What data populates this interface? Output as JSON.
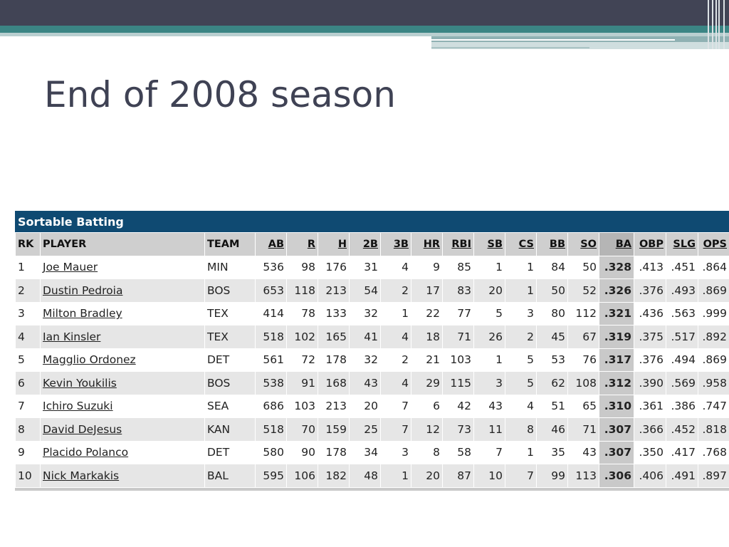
{
  "slide": {
    "title": "End of 2008 season"
  },
  "panel": {
    "title": "Sortable Batting"
  },
  "columns": [
    "RK",
    "PLAYER",
    "TEAM",
    "AB",
    "R",
    "H",
    "2B",
    "3B",
    "HR",
    "RBI",
    "SB",
    "CS",
    "BB",
    "SO",
    "BA",
    "OBP",
    "SLG",
    "OPS"
  ],
  "rows": [
    [
      "1",
      "Joe Mauer",
      "MIN",
      "536",
      "98",
      "176",
      "31",
      "4",
      "9",
      "85",
      "1",
      "1",
      "84",
      "50",
      ".328",
      ".413",
      ".451",
      ".864"
    ],
    [
      "2",
      "Dustin Pedroia",
      "BOS",
      "653",
      "118",
      "213",
      "54",
      "2",
      "17",
      "83",
      "20",
      "1",
      "50",
      "52",
      ".326",
      ".376",
      ".493",
      ".869"
    ],
    [
      "3",
      "Milton Bradley",
      "TEX",
      "414",
      "78",
      "133",
      "32",
      "1",
      "22",
      "77",
      "5",
      "3",
      "80",
      "112",
      ".321",
      ".436",
      ".563",
      ".999"
    ],
    [
      "4",
      "Ian Kinsler",
      "TEX",
      "518",
      "102",
      "165",
      "41",
      "4",
      "18",
      "71",
      "26",
      "2",
      "45",
      "67",
      ".319",
      ".375",
      ".517",
      ".892"
    ],
    [
      "5",
      "Magglio Ordonez",
      "DET",
      "561",
      "72",
      "178",
      "32",
      "2",
      "21",
      "103",
      "1",
      "5",
      "53",
      "76",
      ".317",
      ".376",
      ".494",
      ".869"
    ],
    [
      "6",
      "Kevin Youkilis",
      "BOS",
      "538",
      "91",
      "168",
      "43",
      "4",
      "29",
      "115",
      "3",
      "5",
      "62",
      "108",
      ".312",
      ".390",
      ".569",
      ".958"
    ],
    [
      "7",
      "Ichiro Suzuki",
      "SEA",
      "686",
      "103",
      "213",
      "20",
      "7",
      "6",
      "42",
      "43",
      "4",
      "51",
      "65",
      ".310",
      ".361",
      ".386",
      ".747"
    ],
    [
      "8",
      "David DeJesus",
      "KAN",
      "518",
      "70",
      "159",
      "25",
      "7",
      "12",
      "73",
      "11",
      "8",
      "46",
      "71",
      ".307",
      ".366",
      ".452",
      ".818"
    ],
    [
      "9",
      "Placido Polanco",
      "DET",
      "580",
      "90",
      "178",
      "34",
      "3",
      "8",
      "58",
      "7",
      "1",
      "35",
      "43",
      ".307",
      ".350",
      ".417",
      ".768"
    ],
    [
      "10",
      "Nick Markakis",
      "BAL",
      "595",
      "106",
      "182",
      "48",
      "1",
      "20",
      "87",
      "10",
      "7",
      "99",
      "113",
      ".306",
      ".406",
      ".491",
      ".897"
    ]
  ]
}
